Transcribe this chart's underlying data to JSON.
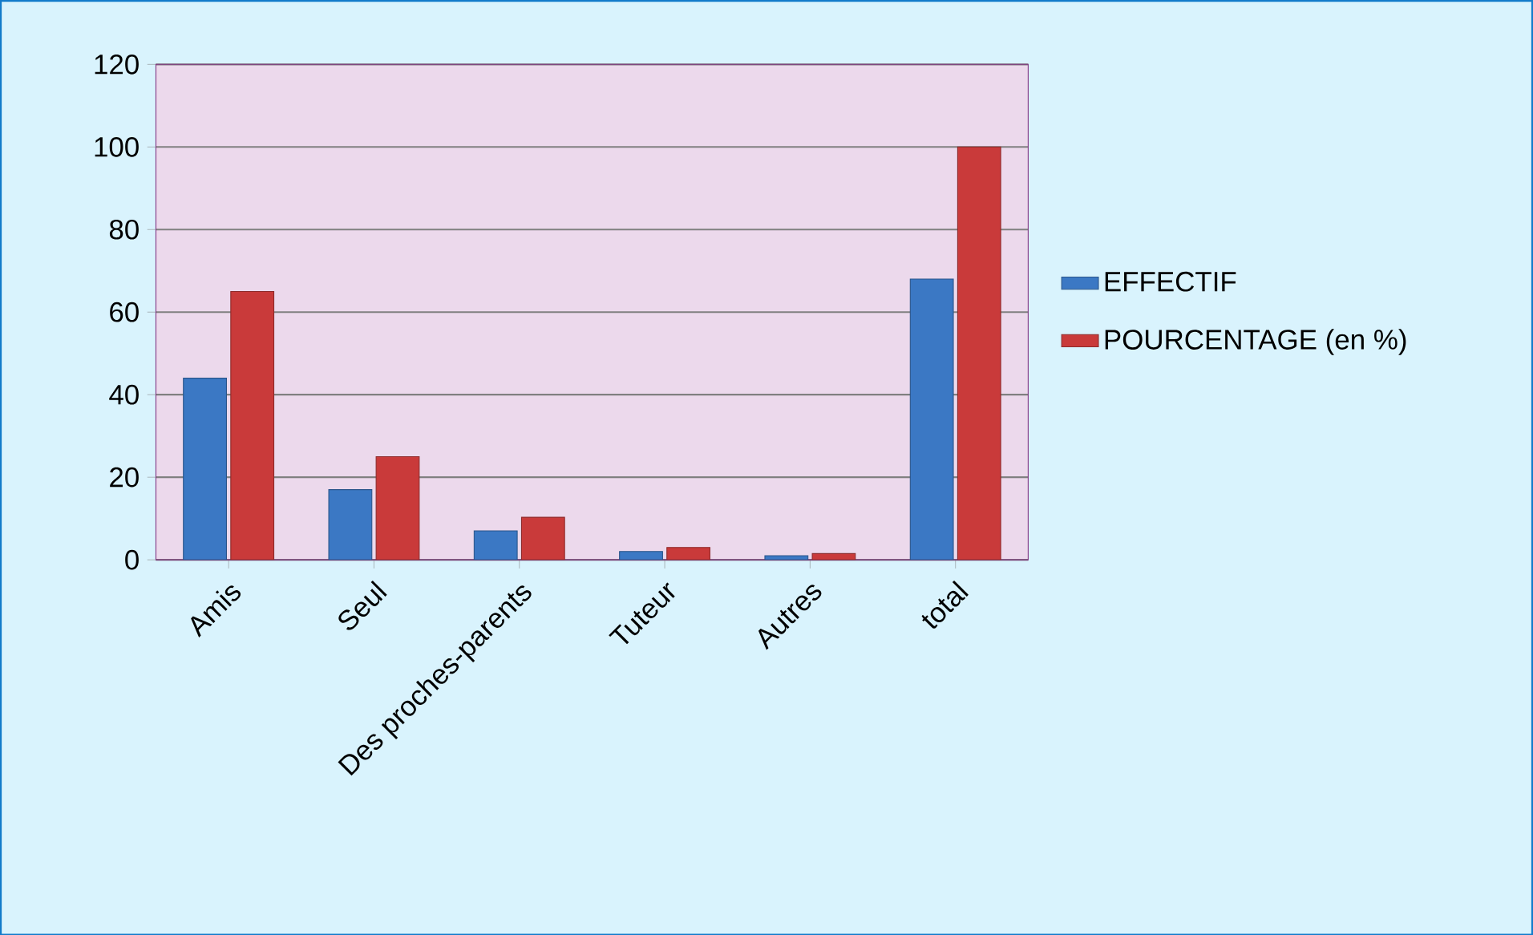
{
  "chart_data": {
    "type": "bar",
    "categories": [
      "Amis",
      "Seul",
      "Des proches-parents",
      "Tuteur",
      "Autres",
      "total"
    ],
    "series": [
      {
        "name": "EFFECTIF",
        "color": "#3b78c4",
        "values": [
          44,
          17,
          7,
          2,
          1,
          68
        ]
      },
      {
        "name": "POURCENTAGE (en %)",
        "color": "#c93a3a",
        "values": [
          65,
          25,
          10.3,
          3,
          1.5,
          100
        ]
      }
    ],
    "ylim": [
      0,
      120
    ],
    "yticks": [
      0,
      20,
      40,
      60,
      80,
      100,
      120
    ],
    "grid": "y",
    "legend": "right"
  }
}
